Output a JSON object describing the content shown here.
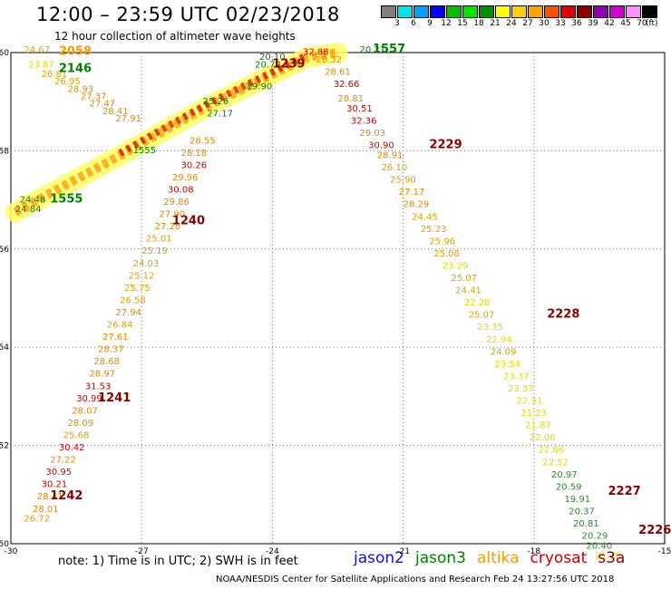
{
  "header": {
    "title": "12:00 – 23:59 UTC 02/23/2018",
    "subtitle": "12 hour collection of altimeter wave heights"
  },
  "footer": {
    "note": "note: 1) Time is in UTC; 2) SWH is in feet",
    "credit": "NOAA/NESDIS Center for Satellite Applications and Research    Feb 24 13:27:56 UTC 2018",
    "satellites": [
      {
        "name": "jason2",
        "color": "#1010e0"
      },
      {
        "name": "jason3",
        "color": "#008000"
      },
      {
        "name": "altika",
        "color": "#ff9900"
      },
      {
        "name": "cryosat",
        "color": "#cc0000"
      },
      {
        "name": "s3a",
        "color": "#880000"
      }
    ]
  },
  "colorbar": {
    "labels": [
      "3",
      "6",
      "9",
      "12",
      "15",
      "18",
      "21",
      "24",
      "27",
      "30",
      "33",
      "36",
      "39",
      "42",
      "45",
      "70"
    ],
    "unit": "(ft)",
    "colors": [
      "#808080",
      "#00e5e5",
      "#00a0ff",
      "#0000ff",
      "#00c000",
      "#00e600",
      "#009000",
      "#ffff00",
      "#ffd000",
      "#ffa500",
      "#ff5000",
      "#e00000",
      "#8b0000",
      "#9000b0",
      "#d000d0",
      "#ff90ff",
      "#000000"
    ]
  },
  "chart_data": {
    "type": "scatter",
    "title": "12:00 – 23:59 UTC 02/23/2018",
    "xlim": [
      -30,
      -15
    ],
    "ylim": [
      50,
      60
    ],
    "xticks": [
      "-30",
      "-27",
      "-24",
      "-21",
      "-18",
      "-15"
    ],
    "yticks": [
      "60",
      "58",
      "56",
      "54",
      "52",
      "50"
    ],
    "grid": true,
    "track_labels": [
      {
        "text": "2058",
        "lon": -28.9,
        "lat": 59.95,
        "color": "#ff9900"
      },
      {
        "text": "2146",
        "lon": -28.9,
        "lat": 59.6,
        "color": "#008000"
      },
      {
        "text": "1239",
        "lon": -24.0,
        "lat": 59.7,
        "color": "#880000"
      },
      {
        "text": "1557",
        "lon": -21.7,
        "lat": 60.0,
        "color": "#008000"
      },
      {
        "text": "2229",
        "lon": -20.4,
        "lat": 58.05,
        "color": "#880000"
      },
      {
        "text": "1240",
        "lon": -26.3,
        "lat": 56.5,
        "color": "#880000"
      },
      {
        "text": "1555",
        "lon": -29.1,
        "lat": 56.95,
        "color": "#008000"
      },
      {
        "text": "2228",
        "lon": -17.7,
        "lat": 54.6,
        "color": "#880000"
      },
      {
        "text": "1241",
        "lon": -28.0,
        "lat": 52.9,
        "color": "#880000"
      },
      {
        "text": "1242",
        "lon": -29.1,
        "lat": 50.9,
        "color": "#880000"
      },
      {
        "text": "2227",
        "lon": -16.3,
        "lat": 51.0,
        "color": "#880000"
      },
      {
        "text": "2226",
        "lon": -15.6,
        "lat": 50.2,
        "color": "#880000"
      }
    ],
    "series": [
      {
        "name": "altika",
        "points": [
          {
            "lon": -29.7,
            "lat": 60.0,
            "v": "24.67"
          },
          {
            "lon": -29.6,
            "lat": 59.7,
            "v": "23.87"
          },
          {
            "lon": -29.3,
            "lat": 59.5,
            "v": "26.81"
          },
          {
            "lon": -29.0,
            "lat": 59.35,
            "v": "26.95"
          },
          {
            "lon": -28.7,
            "lat": 59.2,
            "v": "28.93"
          },
          {
            "lon": -28.4,
            "lat": 59.05,
            "v": "27.37"
          },
          {
            "lon": -28.2,
            "lat": 58.9,
            "v": "27.47"
          },
          {
            "lon": -27.9,
            "lat": 58.75,
            "v": "28.41"
          },
          {
            "lon": -27.6,
            "lat": 58.6,
            "v": "27.91"
          }
        ]
      },
      {
        "name": "s3a",
        "points": [
          {
            "lon": -23.3,
            "lat": 59.95,
            "v": "32.88"
          },
          {
            "lon": -23.0,
            "lat": 59.8,
            "v": "28.32"
          },
          {
            "lon": -22.8,
            "lat": 59.55,
            "v": "28.61"
          },
          {
            "lon": -22.6,
            "lat": 59.3,
            "v": "32.66"
          },
          {
            "lon": -22.5,
            "lat": 59.0,
            "v": "28.81"
          },
          {
            "lon": -22.3,
            "lat": 58.8,
            "v": "30.51"
          },
          {
            "lon": -22.2,
            "lat": 58.55,
            "v": "32.36"
          },
          {
            "lon": -22.0,
            "lat": 58.3,
            "v": "29.03"
          },
          {
            "lon": -21.8,
            "lat": 58.05,
            "v": "30.90"
          },
          {
            "lon": -21.6,
            "lat": 57.85,
            "v": "28.91"
          },
          {
            "lon": -21.5,
            "lat": 57.6,
            "v": "26.10"
          },
          {
            "lon": -21.3,
            "lat": 57.35,
            "v": "25.90"
          },
          {
            "lon": -21.1,
            "lat": 57.1,
            "v": "27.17"
          },
          {
            "lon": -21.0,
            "lat": 56.85,
            "v": "28.29"
          },
          {
            "lon": -20.8,
            "lat": 56.6,
            "v": "24.45"
          },
          {
            "lon": -20.6,
            "lat": 56.35,
            "v": "25.23"
          },
          {
            "lon": -20.4,
            "lat": 56.1,
            "v": "25.96"
          },
          {
            "lon": -20.3,
            "lat": 55.85,
            "v": "25.08"
          },
          {
            "lon": -20.1,
            "lat": 55.6,
            "v": "23.29"
          },
          {
            "lon": -19.9,
            "lat": 55.35,
            "v": "25.07"
          },
          {
            "lon": -19.8,
            "lat": 55.1,
            "v": "24.41"
          },
          {
            "lon": -19.6,
            "lat": 54.85,
            "v": "22.28"
          },
          {
            "lon": -19.5,
            "lat": 54.6,
            "v": "25.07"
          },
          {
            "lon": -19.3,
            "lat": 54.35,
            "v": "23.35"
          },
          {
            "lon": -19.1,
            "lat": 54.1,
            "v": "22.94"
          },
          {
            "lon": -19.0,
            "lat": 53.85,
            "v": "24.09"
          },
          {
            "lon": -18.9,
            "lat": 53.6,
            "v": "23.54"
          },
          {
            "lon": -18.7,
            "lat": 53.35,
            "v": "23.37"
          },
          {
            "lon": -18.6,
            "lat": 53.1,
            "v": "23.37"
          },
          {
            "lon": -18.4,
            "lat": 52.85,
            "v": "22.31"
          },
          {
            "lon": -18.3,
            "lat": 52.6,
            "v": "21.23"
          },
          {
            "lon": -18.2,
            "lat": 52.35,
            "v": "21.87"
          },
          {
            "lon": -18.1,
            "lat": 52.1,
            "v": "22.06"
          },
          {
            "lon": -17.9,
            "lat": 51.85,
            "v": "22.86"
          },
          {
            "lon": -17.8,
            "lat": 51.6,
            "v": "22.52"
          },
          {
            "lon": -17.6,
            "lat": 51.35,
            "v": "20.97"
          },
          {
            "lon": -17.5,
            "lat": 51.1,
            "v": "20.59"
          },
          {
            "lon": -17.3,
            "lat": 50.85,
            "v": "19.91"
          },
          {
            "lon": -17.2,
            "lat": 50.6,
            "v": "20.37"
          },
          {
            "lon": -17.1,
            "lat": 50.35,
            "v": "20.81"
          },
          {
            "lon": -16.9,
            "lat": 50.1,
            "v": "20.29"
          },
          {
            "lon": -16.8,
            "lat": 49.9,
            "v": "20.40"
          },
          {
            "lon": -16.6,
            "lat": 49.7,
            "v": "21.16"
          }
        ]
      },
      {
        "name": "jason3",
        "points": [
          {
            "lon": -24.3,
            "lat": 59.85,
            "v": "20.10"
          },
          {
            "lon": -24.4,
            "lat": 59.7,
            "v": "20.72"
          },
          {
            "lon": -22.0,
            "lat": 60.0,
            "v": "20.21"
          },
          {
            "lon": -24.6,
            "lat": 59.25,
            "v": "19.90"
          },
          {
            "lon": -27.2,
            "lat": 57.95,
            "v": "1555"
          }
        ]
      },
      {
        "name": "cryosat",
        "points": [
          {
            "lon": -25.9,
            "lat": 58.15,
            "v": "28.55"
          },
          {
            "lon": -26.1,
            "lat": 57.9,
            "v": "28.18"
          },
          {
            "lon": -26.1,
            "lat": 57.65,
            "v": "30.26"
          },
          {
            "lon": -26.3,
            "lat": 57.4,
            "v": "29.96"
          },
          {
            "lon": -26.4,
            "lat": 57.15,
            "v": "30.08"
          },
          {
            "lon": -26.5,
            "lat": 56.9,
            "v": "29.86"
          },
          {
            "lon": -26.6,
            "lat": 56.65,
            "v": "27.90"
          },
          {
            "lon": -26.7,
            "lat": 56.4,
            "v": "27.28"
          },
          {
            "lon": -26.9,
            "lat": 56.15,
            "v": "25.01"
          },
          {
            "lon": -27.0,
            "lat": 55.9,
            "v": "25.19"
          },
          {
            "lon": -27.2,
            "lat": 55.65,
            "v": "24.03"
          },
          {
            "lon": -27.3,
            "lat": 55.4,
            "v": "25.12"
          },
          {
            "lon": -27.4,
            "lat": 55.15,
            "v": "25.75"
          },
          {
            "lon": -27.5,
            "lat": 54.9,
            "v": "26.58"
          },
          {
            "lon": -27.6,
            "lat": 54.65,
            "v": "27.94"
          },
          {
            "lon": -27.8,
            "lat": 54.4,
            "v": "26.84"
          },
          {
            "lon": -27.9,
            "lat": 54.15,
            "v": "27.61"
          },
          {
            "lon": -28.0,
            "lat": 53.9,
            "v": "28.37"
          },
          {
            "lon": -28.1,
            "lat": 53.65,
            "v": "28.68"
          },
          {
            "lon": -28.2,
            "lat": 53.4,
            "v": "28.97"
          },
          {
            "lon": -28.3,
            "lat": 53.15,
            "v": "31.53"
          },
          {
            "lon": -28.5,
            "lat": 52.9,
            "v": "30.99"
          },
          {
            "lon": -28.6,
            "lat": 52.65,
            "v": "28.07"
          },
          {
            "lon": -28.7,
            "lat": 52.4,
            "v": "28.09"
          },
          {
            "lon": -28.8,
            "lat": 52.15,
            "v": "25.68"
          },
          {
            "lon": -28.9,
            "lat": 51.9,
            "v": "30.42"
          },
          {
            "lon": -29.1,
            "lat": 51.65,
            "v": "27.22"
          },
          {
            "lon": -29.2,
            "lat": 51.4,
            "v": "30.95"
          },
          {
            "lon": -29.3,
            "lat": 51.15,
            "v": "30.21"
          },
          {
            "lon": -29.4,
            "lat": 50.9,
            "v": "28.41"
          },
          {
            "lon": -29.5,
            "lat": 50.65,
            "v": "28.01"
          },
          {
            "lon": -29.7,
            "lat": 50.45,
            "v": "26.72"
          }
        ]
      },
      {
        "name": "jason2",
        "points": [
          {
            "lon": -25.6,
            "lat": 58.95,
            "v": "25.26"
          },
          {
            "lon": -25.5,
            "lat": 58.7,
            "v": "27.17"
          },
          {
            "lon": -29.8,
            "lat": 56.95,
            "v": "24.48"
          },
          {
            "lon": -29.9,
            "lat": 56.75,
            "v": "24.84"
          }
        ]
      }
    ]
  }
}
